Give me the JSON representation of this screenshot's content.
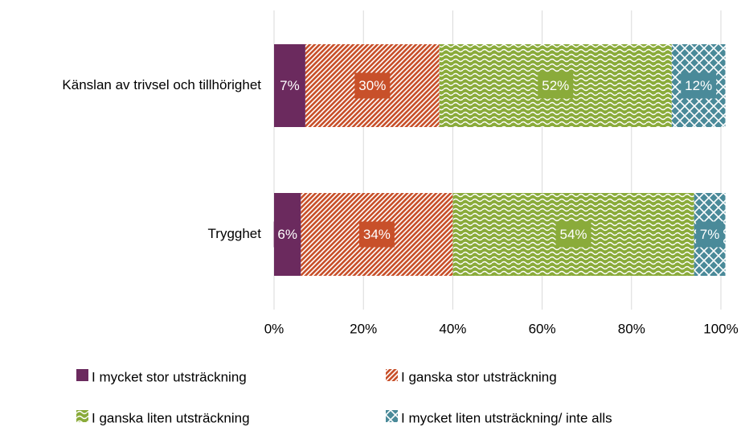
{
  "chart_data": {
    "type": "stacked_barh",
    "categories": [
      "Känslan av trivsel och tillhörighet",
      "Trygghet"
    ],
    "series": [
      {
        "name": "I mycket stor utsträckning",
        "color": "#6b2a5e",
        "values": [
          7,
          6
        ],
        "value_labels": [
          "7%",
          "6%"
        ]
      },
      {
        "name": "I ganska stor utsträckning",
        "color": "#c8502a",
        "values": [
          30,
          34
        ],
        "value_labels": [
          "30%",
          "34%"
        ]
      },
      {
        "name": "I ganska liten utsträckning",
        "color": "#8aab3a",
        "values": [
          52,
          54
        ],
        "value_labels": [
          "52%",
          "54%"
        ]
      },
      {
        "name": "I mycket liten utsträckning/ inte alls",
        "color": "#4a8a99",
        "values": [
          12,
          7
        ],
        "value_labels": [
          "12%",
          "7%"
        ]
      }
    ],
    "xlim": [
      0,
      100
    ],
    "xticks": [
      {
        "value": 0,
        "label": "0%"
      },
      {
        "value": 20,
        "label": "20%"
      },
      {
        "value": 40,
        "label": "40%"
      },
      {
        "value": 60,
        "label": "60%"
      },
      {
        "value": 80,
        "label": "80%"
      },
      {
        "value": 100,
        "label": "100%"
      }
    ],
    "grid": true
  }
}
